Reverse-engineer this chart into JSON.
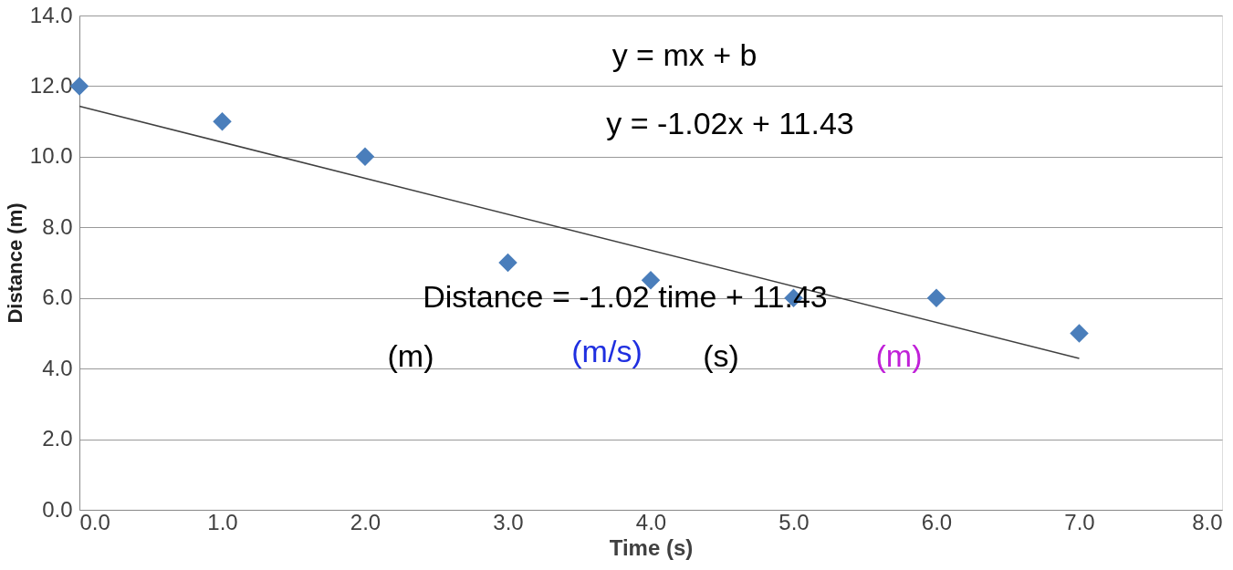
{
  "chart_data": {
    "type": "scatter",
    "xlabel": "Time (s)",
    "ylabel": "Distance (m)",
    "series": [
      {
        "color": "#4a7ebb",
        "marker": "diamond",
        "x": [
          0,
          1,
          2,
          3,
          4,
          5,
          6,
          7
        ],
        "values": [
          12,
          11,
          10,
          7,
          6.5,
          6,
          6,
          5
        ]
      },
      {
        "type": "line",
        "color": "#404040",
        "marker": "none",
        "line_style": "solid",
        "x": [
          0,
          7
        ],
        "values": [
          11.43,
          4.29
        ]
      }
    ],
    "xlim": [
      0,
      8
    ],
    "ylim": [
      0,
      14
    ],
    "xticks": [
      {
        "value": 0,
        "label": "0.0"
      },
      {
        "value": 1,
        "label": "1.0"
      },
      {
        "value": 2,
        "label": "2.0"
      },
      {
        "value": 3,
        "label": "3.0"
      },
      {
        "value": 4,
        "label": "4.0"
      },
      {
        "value": 5,
        "label": "5.0"
      },
      {
        "value": 6,
        "label": "6.0"
      },
      {
        "value": 7,
        "label": "7.0"
      },
      {
        "value": 8,
        "label": "8.0"
      }
    ],
    "yticks": [
      {
        "value": 0,
        "label": "0.0"
      },
      {
        "value": 2,
        "label": "2.0"
      },
      {
        "value": 4,
        "label": "4.0"
      },
      {
        "value": 6,
        "label": "6.0"
      },
      {
        "value": 8,
        "label": "8.0"
      },
      {
        "value": 10,
        "label": "10.0"
      },
      {
        "value": 12,
        "label": "12.0"
      },
      {
        "value": 14,
        "label": "14.0"
      }
    ],
    "grid": "y",
    "annotations": [
      "y = mx + b",
      "y = -1.02x + 11.43",
      "Distance = -1.02 time + 11.43",
      "(m)",
      "(m/s)",
      "(s)",
      "(m)"
    ]
  }
}
